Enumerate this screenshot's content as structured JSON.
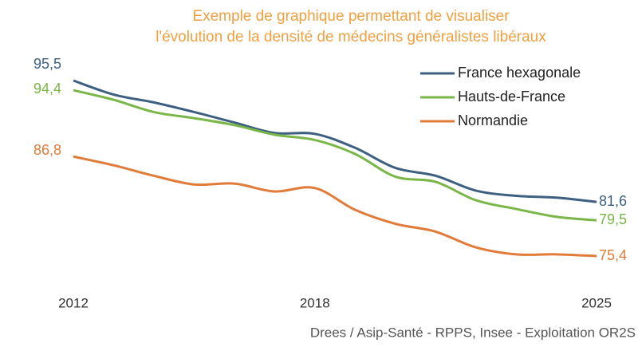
{
  "chart_data": {
    "type": "line",
    "title": [
      "Exemple de graphique permettant de visualiser",
      "l'évolution de la densité de médecins généralistes libéraux"
    ],
    "source": "Drees / Asip-Santé - RPPS, Insee - Exploitation OR2S",
    "x": [
      2012,
      2013,
      2014,
      2015,
      2016,
      2017,
      2018,
      2019,
      2020,
      2021,
      2022,
      2023,
      2024,
      2025
    ],
    "xlim": [
      2012,
      2025
    ],
    "xticks": [
      2012,
      2018,
      2025
    ],
    "ylim": [
      73,
      97
    ],
    "legend": "top-right",
    "series": [
      {
        "name": "France hexagonale",
        "color": "#3d5f80",
        "values": [
          95.5,
          93.9,
          93.0,
          91.9,
          90.7,
          89.5,
          89.4,
          87.8,
          85.5,
          84.6,
          82.9,
          82.3,
          82.1,
          81.6
        ],
        "value_labels": [
          "95,5",
          null,
          null,
          null,
          null,
          null,
          null,
          null,
          null,
          null,
          null,
          null,
          null,
          "81,6"
        ]
      },
      {
        "name": "Hauts-de-France",
        "color": "#7ab648",
        "values": [
          94.4,
          93.3,
          91.9,
          91.2,
          90.4,
          89.3,
          88.7,
          87.1,
          84.5,
          83.9,
          81.8,
          80.8,
          79.9,
          79.5
        ],
        "value_labels": [
          "94,4",
          null,
          null,
          null,
          null,
          null,
          null,
          null,
          null,
          null,
          null,
          null,
          null,
          "79,5"
        ]
      },
      {
        "name": "Normandie",
        "color": "#e07b39",
        "values": [
          86.8,
          85.8,
          84.6,
          83.6,
          83.7,
          82.8,
          83.2,
          80.7,
          79.1,
          78.2,
          76.4,
          75.6,
          75.6,
          75.4
        ],
        "value_labels": [
          "86,8",
          null,
          null,
          null,
          null,
          null,
          null,
          null,
          null,
          null,
          null,
          null,
          null,
          "75,4"
        ]
      }
    ]
  }
}
